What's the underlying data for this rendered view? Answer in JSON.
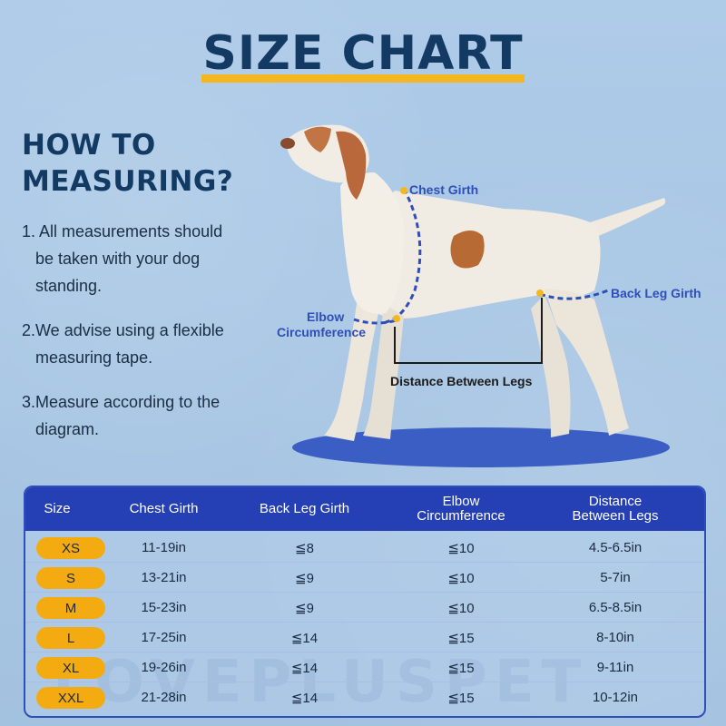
{
  "header": {
    "title": "SIZE CHART"
  },
  "howto": {
    "heading_line1": "HOW TO",
    "heading_line2": "MEASURING?",
    "steps": [
      {
        "line1": "1. All measurements should",
        "line2": "be taken with your dog",
        "line3": "standing."
      },
      {
        "line1": "2.We advise using a flexible",
        "line2": "measuring tape."
      },
      {
        "line1": "3.Measure according to the",
        "line2": "diagram."
      }
    ]
  },
  "diagram": {
    "chest_girth": "Chest Girth",
    "back_leg_girth": "Back Leg Girth",
    "elbow_line1": "Elbow",
    "elbow_line2": "Circumference",
    "distance": "Distance Between Legs",
    "accent_color": "#2f4fb8",
    "marker_color": "#f5b720"
  },
  "table": {
    "headers": {
      "size": "Size",
      "chest": "Chest Girth",
      "back": "Back Leg Girth",
      "elbow_line1": "Elbow",
      "elbow_line2": "Circumference",
      "dist_line1": "Distance",
      "dist_line2": "Between Legs"
    },
    "rows": [
      {
        "size": "XS",
        "chest": "11-19in",
        "back": "≦8",
        "elbow": "≦10",
        "dist": "4.5-6.5in"
      },
      {
        "size": "S",
        "chest": "13-21in",
        "back": "≦9",
        "elbow": "≦10",
        "dist": "5-7in"
      },
      {
        "size": "M",
        "chest": "15-23in",
        "back": "≦9",
        "elbow": "≦10",
        "dist": "6.5-8.5in"
      },
      {
        "size": "L",
        "chest": "17-25in",
        "back": "≦14",
        "elbow": "≦15",
        "dist": "8-10in"
      },
      {
        "size": "XL",
        "chest": "19-26in",
        "back": "≦14",
        "elbow": "≦15",
        "dist": "9-11in"
      },
      {
        "size": "XXL",
        "chest": "21-28in",
        "back": "≦14",
        "elbow": "≦15",
        "dist": "10-12in"
      }
    ],
    "header_color": "#2440b4",
    "pill_color": "#f4ab12"
  },
  "watermark": "LOVEPLUSPET"
}
